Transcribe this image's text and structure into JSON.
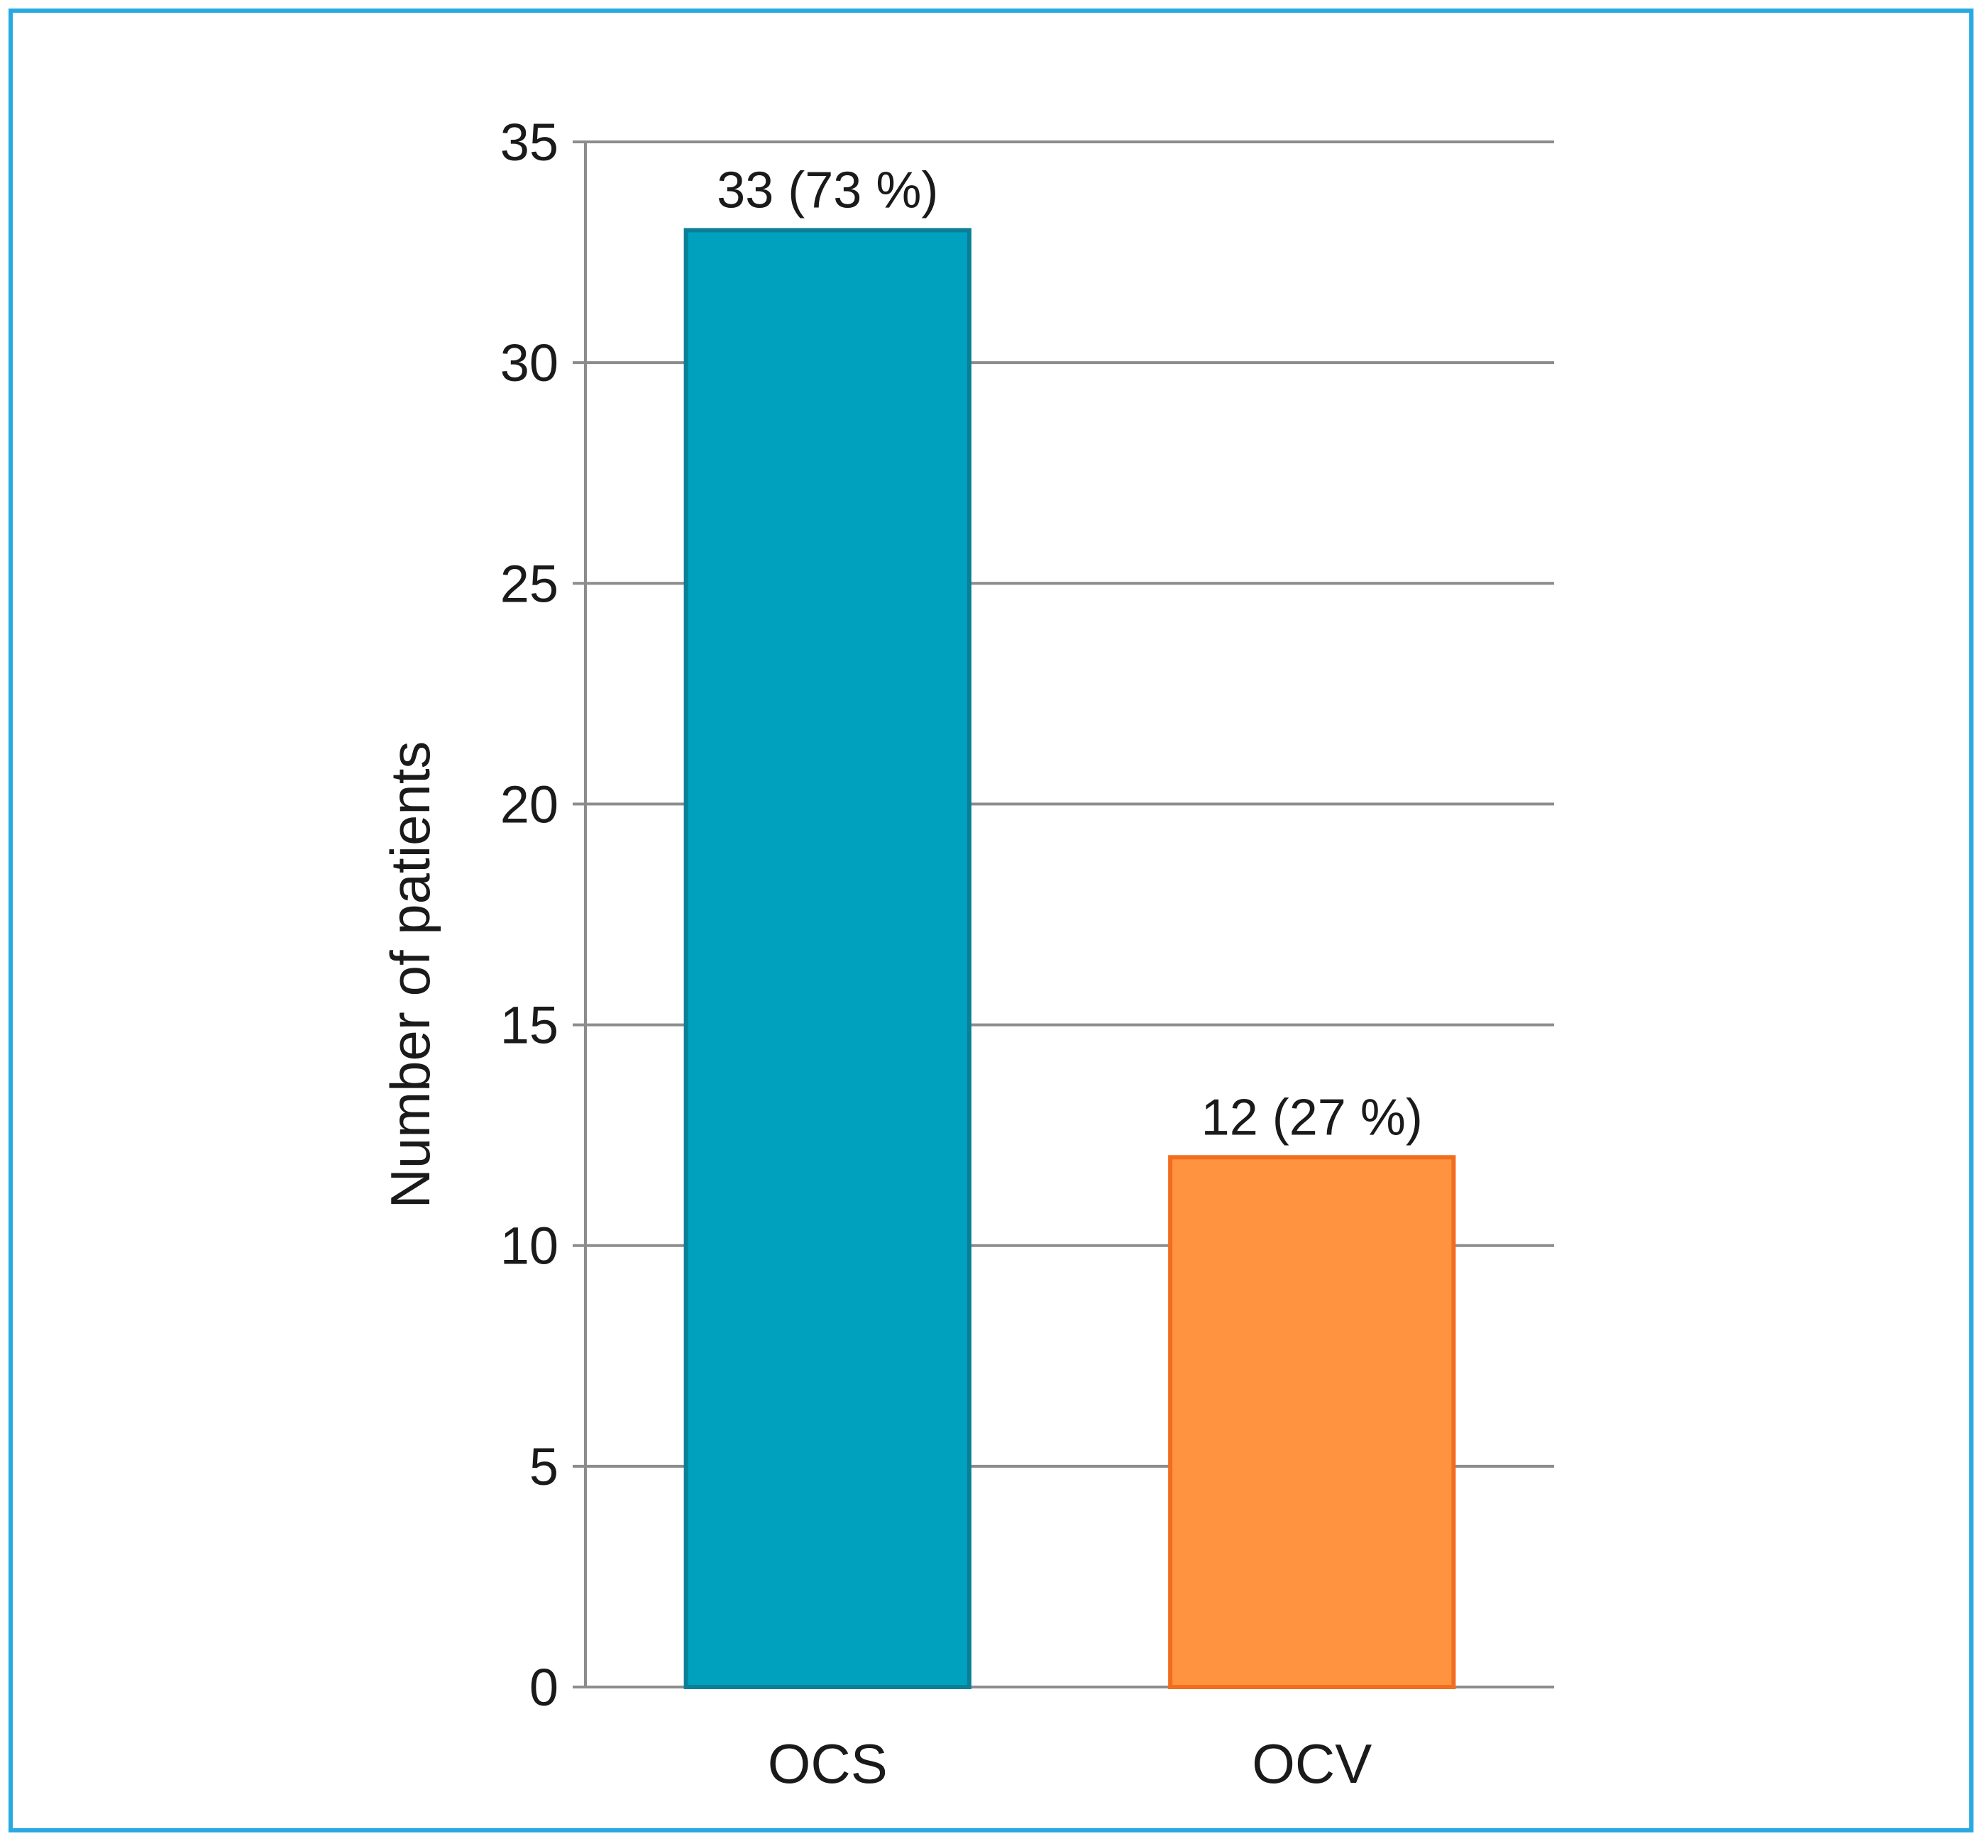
{
  "chart_data": {
    "type": "bar",
    "title": "",
    "xlabel": "",
    "ylabel": "Number of patients",
    "ylim": [
      0,
      35
    ],
    "yticks": [
      0,
      5,
      10,
      15,
      20,
      25,
      30,
      35
    ],
    "grid": true,
    "categories": [
      "OCS",
      "OCV"
    ],
    "values": [
      33,
      12
    ],
    "data_labels": [
      "33 (73 %)",
      "12 (27 %)"
    ],
    "bar_colors": [
      "#00a1bf",
      "#ff9340"
    ],
    "bar_edge_colors": [
      "#0a7f97",
      "#f26d1f"
    ],
    "frame_color": "#29a9e1",
    "grid_color": "#8c8c8c"
  }
}
